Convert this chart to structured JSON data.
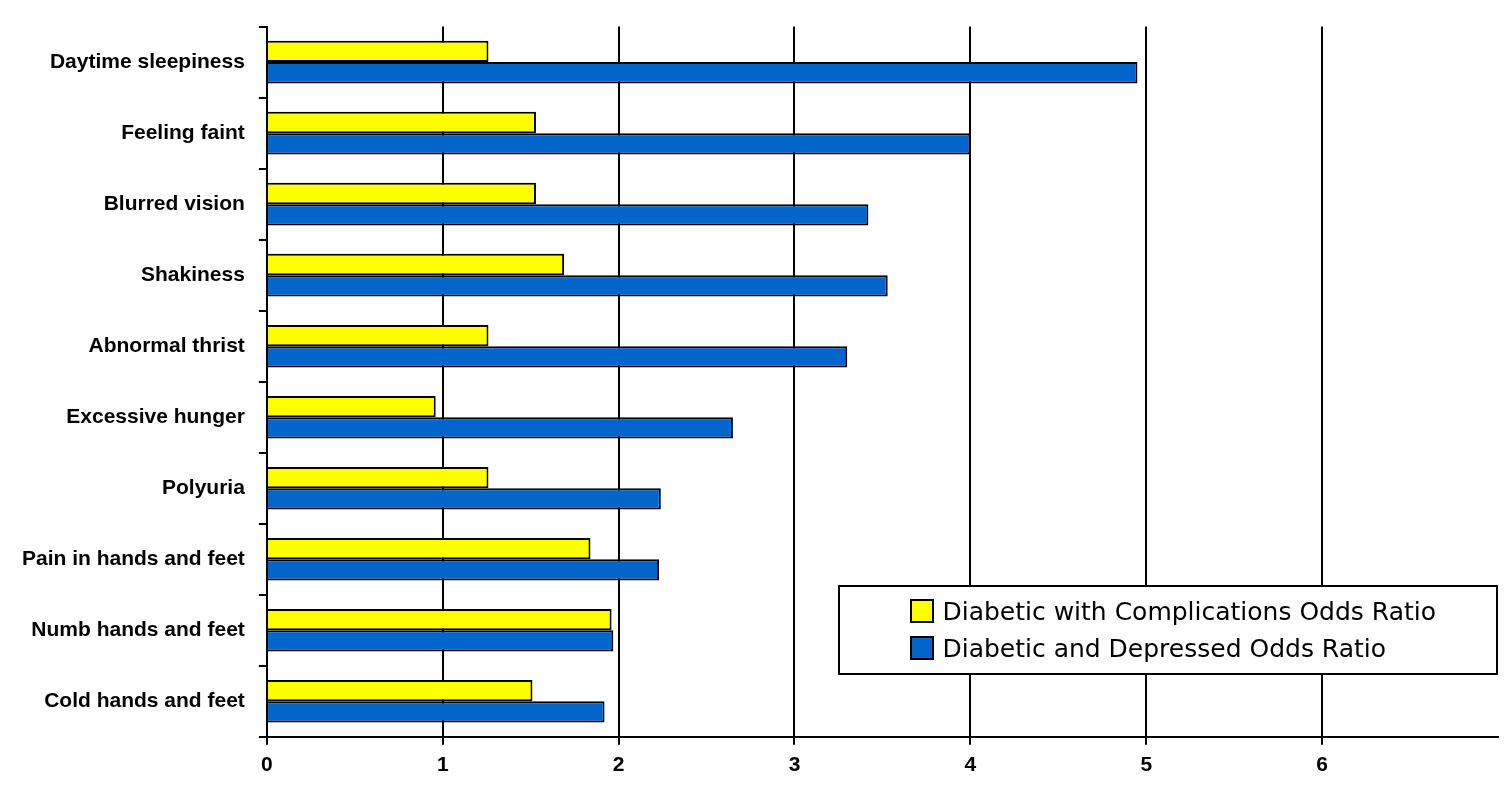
{
  "chart_data": {
    "type": "bar",
    "orientation": "horizontal",
    "categories": [
      "Daytime sleepiness",
      "Feeling faint",
      "Blurred vision",
      "Shakiness",
      "Abnormal thrist",
      "Excessive hunger",
      "Polyuria",
      "Pain in hands and feet",
      "Numb hands and feet",
      "Cold hands and feet"
    ],
    "series": [
      {
        "name": "Diabetic with Complications Odds Ratio",
        "color": "#ffff00",
        "values": [
          1.26,
          1.53,
          1.53,
          1.69,
          1.26,
          0.96,
          1.26,
          1.84,
          1.96,
          1.51
        ]
      },
      {
        "name": "Diabetic and Depressed Odds Ratio",
        "color": "#0066cc",
        "values": [
          4.95,
          4.0,
          3.42,
          3.53,
          3.3,
          2.65,
          2.24,
          2.23,
          1.97,
          1.92
        ]
      }
    ],
    "xlim": [
      0,
      7
    ],
    "xticks": [
      0,
      1,
      2,
      3,
      4,
      5,
      6
    ],
    "grid": "x",
    "legend": "bottom right"
  }
}
